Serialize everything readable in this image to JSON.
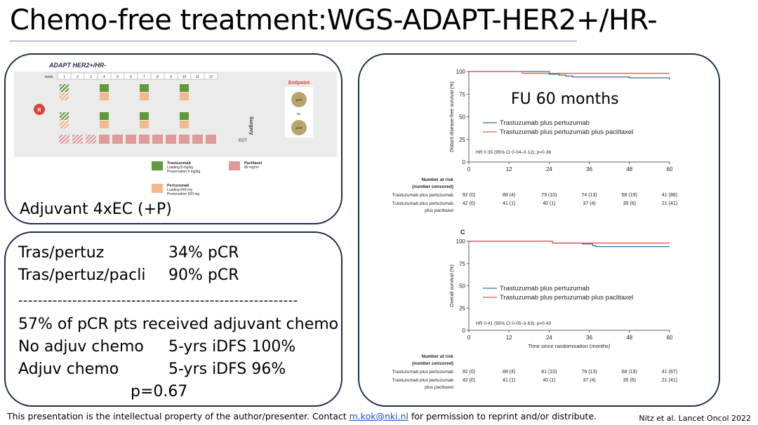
{
  "title": "Chemo-free treatment:WGS-ADAPT-HER2+/HR-",
  "schema": {
    "heading": "ADAPT HER2+/HR-",
    "week_label": "week",
    "weeks": [
      "1",
      "2",
      "3",
      "4",
      "5",
      "6",
      "7",
      "8",
      "9",
      "10",
      "11",
      "12"
    ],
    "r_label": "R",
    "surgery_label": "Surgery",
    "eot_label": "EOT",
    "endpoint_label": "Endpoint",
    "pcr_label": "pCR",
    "vs_label": "vs.",
    "legend": {
      "trastuzumab": [
        "Trastuzumab",
        "Loading 8 mg/kg",
        "Preservation 6 mg/kg"
      ],
      "pertuzumab": [
        "Pertuzumab",
        "Loading 840 mg",
        "Preservation 420 mg"
      ],
      "paclitaxel": [
        "Paclitaxel",
        "80 mg/m²"
      ]
    },
    "colors": {
      "trastuzumab": "#5f9a3a",
      "pertuzumab": "#f6b88a",
      "paclitaxel": "#df9a9a",
      "r_circle": "#d9453a",
      "endpoint": "#d9453a"
    }
  },
  "adjuvant_text": "Adjuvant 4xEC (+P)",
  "results": {
    "row1_label": "Tras/pertuz",
    "row1_value": "34% pCR",
    "row2_label": "Tras/pertuz/pacli",
    "row2_value": "90% pCR",
    "divider": "---------------------------------------------------------",
    "line3": "57% of pCR pts received adjuvant chemo",
    "row4_label": "No adjuv chemo",
    "row4_value": "5-yrs iDFS 100%",
    "row5_label": "Adjuv chemo",
    "row5_value": "5-yrs iDFS 96%",
    "pvalue": "p=0.67"
  },
  "chart_data": [
    {
      "type": "line",
      "title": "",
      "annotation": "FU 60 months",
      "ylabel": "Distant disease-free survival (%)",
      "xlabel": "",
      "xlim": [
        0,
        60
      ],
      "ylim": [
        0,
        100
      ],
      "xticks": [
        0,
        12,
        24,
        36,
        48,
        60
      ],
      "yticks": [
        0,
        25,
        50,
        75,
        100
      ],
      "series": [
        {
          "name": "Trastuzumab plus pertuzumab",
          "color": "#2e6f9e",
          "x": [
            0,
            14,
            24,
            27,
            29,
            31,
            36,
            48,
            56,
            60
          ],
          "y": [
            100,
            100,
            97,
            96,
            95,
            94,
            94,
            93,
            93,
            91
          ]
        },
        {
          "name": "Trastuzumab plus pertuzumab plus paclitaxel",
          "color": "#e05a52",
          "x": [
            0,
            14,
            16,
            60
          ],
          "y": [
            100,
            100,
            98,
            98
          ]
        }
      ],
      "hr_text": "HR 0·35 (95% CI 0·04–3·12); p=0·36",
      "risk_table": {
        "header": [
          "Number at risk",
          "(number censored)"
        ],
        "rows": [
          {
            "label": [
              "Trastuzumab plus pertuzumab"
            ],
            "values": [
              "92 (0)",
              "88 (4)",
              "79 (10)",
              "74 (13)",
              "68 (19)",
              "41 (86)"
            ]
          },
          {
            "label": [
              "Trastuzumab plus pertuzumab",
              "plus paclitaxel"
            ],
            "values": [
              "42 (0)",
              "41 (1)",
              "40 (1)",
              "37 (4)",
              "35 (6)",
              "21 (41)"
            ]
          }
        ]
      }
    },
    {
      "type": "line",
      "title": "",
      "panel_label": "C",
      "ylabel": "Overall survival (%)",
      "xlabel": "Time since randomisation (months)",
      "xlim": [
        0,
        60
      ],
      "ylim": [
        0,
        100
      ],
      "xticks": [
        0,
        12,
        24,
        36,
        48,
        60
      ],
      "yticks": [
        0,
        25,
        50,
        75,
        100
      ],
      "series": [
        {
          "name": "Trastuzumab plus pertuzumab",
          "color": "#2e6f9e",
          "x": [
            0,
            23,
            25,
            34,
            37,
            38,
            60
          ],
          "y": [
            100,
            100,
            98,
            97,
            95,
            94,
            94
          ]
        },
        {
          "name": "Trastuzumab plus pertuzumab plus paclitaxel",
          "color": "#e05a52",
          "x": [
            0,
            23,
            25,
            60
          ],
          "y": [
            100,
            100,
            98,
            98
          ]
        }
      ],
      "hr_text": "HR 0·41 (95% CI 0·05–3·63); p=0·43",
      "risk_table": {
        "header": [
          "Number at risk",
          "(number censored)"
        ],
        "rows": [
          {
            "label": [
              "Trastuzumab plus pertuzumab"
            ],
            "values": [
              "92 (0)",
              "88 (4)",
              "81 (10)",
              "76 (13)",
              "68 (19)",
              "41 (87)"
            ]
          },
          {
            "label": [
              "Trastuzumab plus pertuzumab",
              "plus paclitaxel"
            ],
            "values": [
              "42 (0)",
              "41 (1)",
              "40 (1)",
              "37 (4)",
              "35 (6)",
              "21 (41)"
            ]
          }
        ]
      }
    }
  ],
  "footer": {
    "prefix": "This presentation is the intellectual property of the author/presenter. Contact ",
    "email": "m.kok@nki.nl",
    "suffix": " for permission to reprint and/or distribute."
  },
  "citation": "Nitz et al. Lancet Oncol 2022"
}
